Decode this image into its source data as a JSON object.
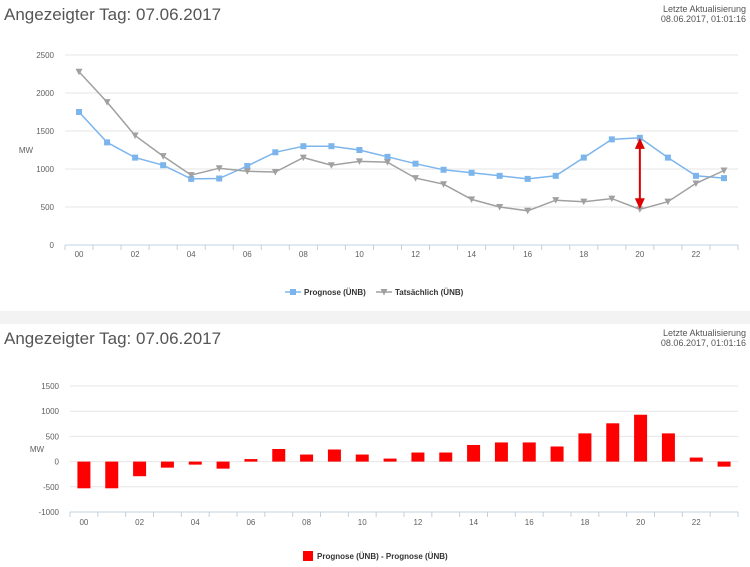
{
  "panel1": {
    "title": "Angezeigter Tag: 07.06.2017",
    "update_label": "Letzte Aktualisierung",
    "update_time": "08.06.2017, 01:01:16"
  },
  "panel2": {
    "title": "Angezeigter Tag: 07.06.2017",
    "update_label": "Letzte Aktualisierung",
    "update_time": "08.06.2017, 01:01:16"
  },
  "colors": {
    "prognose": "#7cb5ec",
    "tatsaechlich": "#a0a0a0",
    "difference": "#ff0000",
    "arrow": "#dd0000"
  },
  "chart_data": [
    {
      "type": "line",
      "ylabel": "MW",
      "ylim": [
        0,
        2500
      ],
      "yticks": [
        0,
        500,
        1000,
        1500,
        2000,
        2500
      ],
      "x": [
        0,
        1,
        2,
        3,
        4,
        5,
        6,
        7,
        8,
        9,
        10,
        11,
        12,
        13,
        14,
        15,
        16,
        17,
        18,
        19,
        20,
        21,
        22,
        23
      ],
      "xtick_labels": [
        "00",
        "02",
        "04",
        "06",
        "08",
        "10",
        "12",
        "14",
        "16",
        "18",
        "20",
        "22"
      ],
      "series": [
        {
          "name": "Prognose (ÜNB)",
          "marker": "square",
          "values": [
            1750,
            1350,
            1150,
            1050,
            870,
            875,
            1040,
            1220,
            1300,
            1300,
            1250,
            1160,
            1070,
            990,
            950,
            910,
            870,
            910,
            1150,
            1390,
            1410,
            1150,
            910,
            880
          ]
        },
        {
          "name": "Tatsächlich (ÜNB)",
          "marker": "triangle-down",
          "values": [
            2280,
            1880,
            1440,
            1170,
            920,
            1010,
            970,
            960,
            1150,
            1050,
            1100,
            1090,
            880,
            800,
            600,
            500,
            450,
            590,
            570,
            610,
            470,
            570,
            810,
            980
          ]
        }
      ],
      "annotation": {
        "type": "double-arrow",
        "x": 20,
        "from": 470,
        "to": 1410
      },
      "legend_position": "bottom-center"
    },
    {
      "type": "bar",
      "ylabel": "MW",
      "ylim": [
        -1000,
        1500
      ],
      "yticks": [
        -1000,
        -500,
        0,
        500,
        1000,
        1500
      ],
      "x": [
        0,
        1,
        2,
        3,
        4,
        5,
        6,
        7,
        8,
        9,
        10,
        11,
        12,
        13,
        14,
        15,
        16,
        17,
        18,
        19,
        20,
        21,
        22,
        23
      ],
      "xtick_labels": [
        "00",
        "02",
        "04",
        "06",
        "08",
        "10",
        "12",
        "14",
        "16",
        "18",
        "20",
        "22"
      ],
      "series": [
        {
          "name": "Prognose (ÜNB) - Prognose (ÜNB)",
          "values": [
            -530,
            -530,
            -290,
            -120,
            -60,
            -140,
            50,
            250,
            140,
            240,
            140,
            60,
            180,
            180,
            330,
            380,
            380,
            300,
            560,
            760,
            930,
            560,
            80,
            -100
          ]
        }
      ],
      "legend_position": "bottom-center"
    }
  ]
}
